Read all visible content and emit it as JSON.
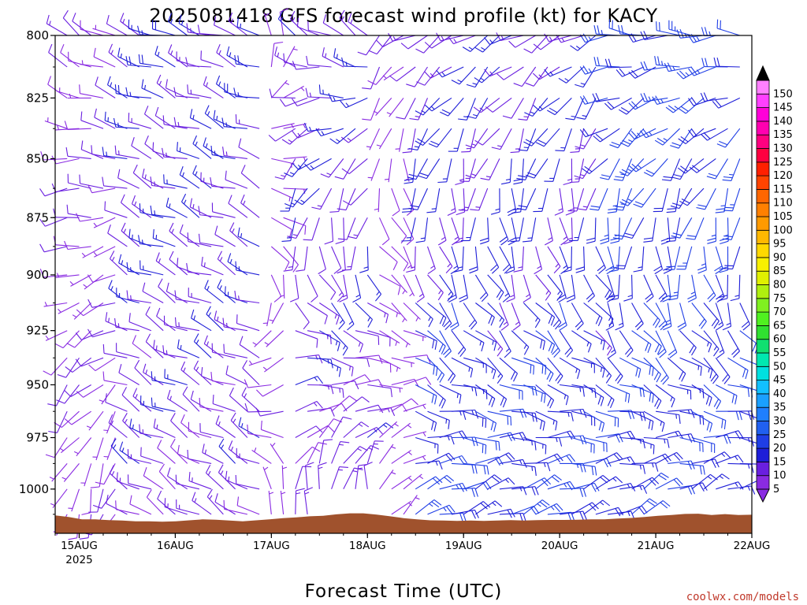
{
  "title": "2025081418 GFS forecast wind profile (kt) for KACY",
  "xlabel": "Forecast Time (UTC)",
  "credit": "coolwx.com/models",
  "chart_data": {
    "type": "wind-barb-profile",
    "title": "2025081418 GFS forecast wind profile (kt) for KACY",
    "xlabel": "Forecast Time (UTC)",
    "ylabel": "",
    "x_ticks": [
      "15AUG",
      "16AUG",
      "17AUG",
      "18AUG",
      "19AUG",
      "20AUG",
      "21AUG",
      "22AUG"
    ],
    "x_year_label": "2025",
    "x_start_offset_days": -0.25,
    "x_end_days": 7.0,
    "y_ticks": [
      800,
      825,
      850,
      875,
      900,
      925,
      950,
      975,
      1000
    ],
    "y_levels": [
      800,
      812.5,
      825,
      837.5,
      850,
      862.5,
      875,
      887.5,
      900,
      912.5,
      925,
      937.5,
      950,
      962.5,
      975,
      987.5,
      1000,
      1012.5
    ],
    "ylim": [
      800,
      1022
    ],
    "y_scale": "log",
    "colorbar": {
      "values": [
        5,
        10,
        15,
        20,
        25,
        30,
        35,
        40,
        45,
        50,
        55,
        60,
        65,
        70,
        75,
        80,
        85,
        90,
        95,
        100,
        105,
        110,
        115,
        120,
        125,
        130,
        135,
        140,
        145,
        150
      ],
      "colors": [
        "#8a2be2",
        "#6a1fe0",
        "#1e1ed8",
        "#1f3ee6",
        "#2060f0",
        "#1f7fff",
        "#1aa0ff",
        "#12c0ff",
        "#00e0e0",
        "#00e8b0",
        "#10e070",
        "#30e030",
        "#50f020",
        "#80f020",
        "#b0f010",
        "#e0f000",
        "#f8f000",
        "#ffd800",
        "#ffb800",
        "#ff9a00",
        "#ff8000",
        "#ff6600",
        "#ff4400",
        "#ff2000",
        "#ff0040",
        "#ff0080",
        "#ff00b0",
        "#ff00d8",
        "#ff40ff",
        "#ff80ff"
      ]
    },
    "ground_color": "#a0522d",
    "ground_surface_hpa": [
      1013,
      1013.8,
      1015,
      1015,
      1015.4,
      1015.6,
      1016,
      1016,
      1016.2,
      1016,
      1015.5,
      1015,
      1015.2,
      1015.6,
      1016,
      1015.5,
      1015,
      1014.4,
      1014,
      1013.5,
      1013.2,
      1012.5,
      1012,
      1012,
      1012.6,
      1013.5,
      1014.4,
      1015,
      1015.5,
      1015.6,
      1015.8,
      1015.6,
      1015.8,
      1015.6,
      1015.4,
      1015.6,
      1015.4,
      1015.3,
      1015.3,
      1015.2,
      1015,
      1015,
      1014.6,
      1014.3,
      1013.8,
      1013.2,
      1012.8,
      1012.3,
      1012.2,
      1012.8,
      1012.4,
      1012.8,
      1012.7
    ],
    "wind_regimes": [
      {
        "from_day": -0.25,
        "to_day": 0.5,
        "low_dir": 200,
        "low_spd": 8,
        "high_dir": 300,
        "high_spd": 10
      },
      {
        "from_day": 0.5,
        "to_day": 2.0,
        "low_dir": 300,
        "low_spd": 12,
        "high_dir": 290,
        "high_spd": 15
      },
      {
        "from_day": 2.0,
        "to_day": 2.25,
        "low_dir": 340,
        "low_spd": 8,
        "high_dir": 0,
        "high_spd": 5
      },
      {
        "from_day": 2.25,
        "to_day": 3.1,
        "low_dir": 10,
        "low_spd": 12,
        "high_dir": 300,
        "high_spd": 14
      },
      {
        "from_day": 3.1,
        "to_day": 3.5,
        "low_dir": 40,
        "low_spd": 5,
        "high_dir": 230,
        "high_spd": 8
      },
      {
        "from_day": 3.5,
        "to_day": 5.5,
        "low_dir": 70,
        "low_spd": 20,
        "high_dir": 240,
        "high_spd": 14
      },
      {
        "from_day": 5.5,
        "to_day": 7.0,
        "low_dir": 65,
        "low_spd": 18,
        "high_dir": 270,
        "high_spd": 22
      }
    ]
  }
}
